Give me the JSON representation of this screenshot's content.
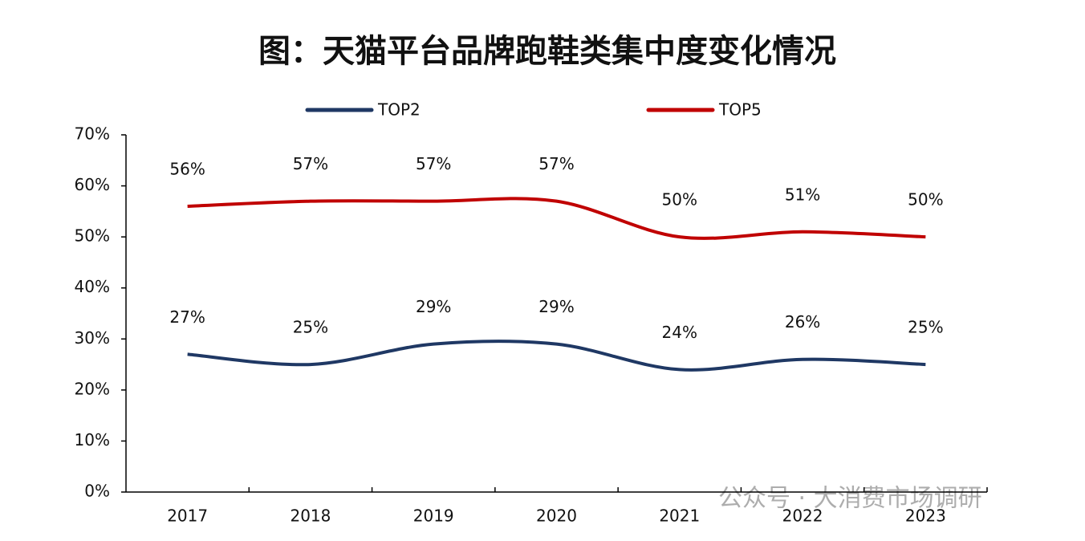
{
  "chart_data": {
    "type": "line",
    "title": "图：天猫平台品牌跑鞋类集中度变化情况",
    "categories": [
      "2017",
      "2018",
      "2019",
      "2020",
      "2021",
      "2022",
      "2023"
    ],
    "series": [
      {
        "name": "TOP2",
        "color": "#1f3864",
        "values": [
          27,
          25,
          29,
          29,
          24,
          26,
          25
        ],
        "value_labels": [
          "27%",
          "25%",
          "29%",
          "29%",
          "24%",
          "26%",
          "25%"
        ]
      },
      {
        "name": "TOP5",
        "color": "#c00000",
        "values": [
          56,
          57,
          57,
          57,
          50,
          51,
          50
        ],
        "value_labels": [
          "56%",
          "57%",
          "57%",
          "57%",
          "50%",
          "51%",
          "50%"
        ]
      }
    ],
    "ylim": [
      0,
      70
    ],
    "yticks": [
      {
        "value": 0,
        "label": "0%"
      },
      {
        "value": 10,
        "label": "10%"
      },
      {
        "value": 20,
        "label": "20%"
      },
      {
        "value": 30,
        "label": "30%"
      },
      {
        "value": 40,
        "label": "40%"
      },
      {
        "value": 50,
        "label": "50%"
      },
      {
        "value": 60,
        "label": "60%"
      },
      {
        "value": 70,
        "label": "70%"
      }
    ],
    "legend": "top",
    "watermark": "公众号 · 大消费市场调研"
  }
}
